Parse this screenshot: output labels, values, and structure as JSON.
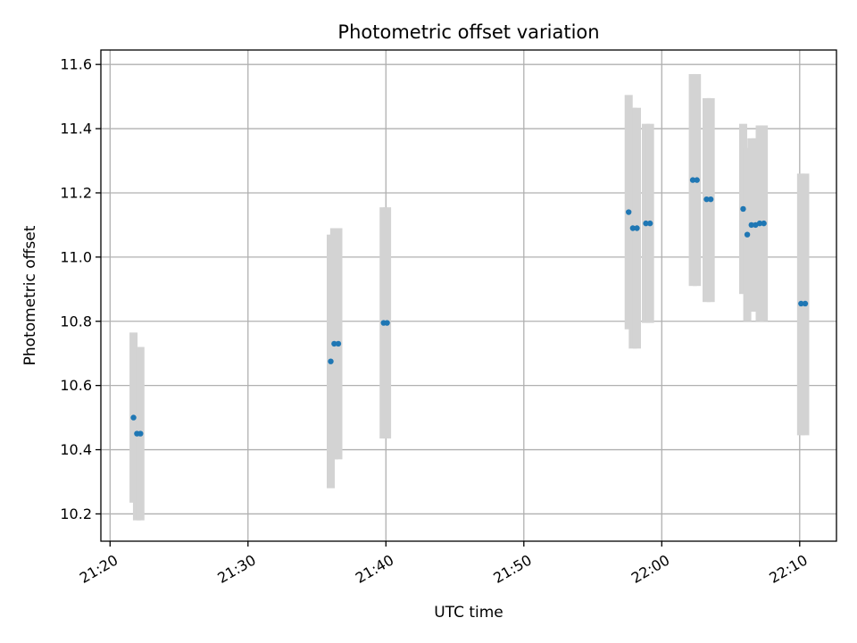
{
  "chart_data": {
    "type": "scatter",
    "title": "Photometric offset variation",
    "xlabel": "UTC time",
    "ylabel": "Photometric offset",
    "xlim": [
      "21:19:20",
      "22:12:40"
    ],
    "ylim": [
      10.115,
      11.645
    ],
    "x_ticks": [
      "21:20",
      "21:30",
      "21:40",
      "21:50",
      "22:00",
      "22:10"
    ],
    "y_ticks": [
      "10.2",
      "10.4",
      "10.6",
      "10.8",
      "11.0",
      "11.2",
      "11.4",
      "11.6"
    ],
    "grid": true,
    "legend": "none",
    "colors": {
      "point": "#1f77b4",
      "errorbar": "#d3d3d3"
    },
    "series": [
      {
        "points": [
          {
            "x": "21:21:42",
            "y": 10.5,
            "ylow": 10.235,
            "yhigh": 10.765
          },
          {
            "x": "21:21:57",
            "y": 10.45,
            "ylow": 10.18,
            "yhigh": 10.72
          },
          {
            "x": "21:22:12",
            "y": 10.45,
            "ylow": 10.18,
            "yhigh": 10.72
          },
          {
            "x": "21:36:00",
            "y": 10.675,
            "ylow": 10.28,
            "yhigh": 11.07
          },
          {
            "x": "21:36:15",
            "y": 10.73,
            "ylow": 10.37,
            "yhigh": 11.09
          },
          {
            "x": "21:36:33",
            "y": 10.73,
            "ylow": 10.37,
            "yhigh": 11.09
          },
          {
            "x": "21:39:50",
            "y": 10.795,
            "ylow": 10.435,
            "yhigh": 11.155
          },
          {
            "x": "21:40:05",
            "y": 10.795,
            "ylow": 10.435,
            "yhigh": 11.155
          },
          {
            "x": "21:57:36",
            "y": 11.14,
            "ylow": 10.775,
            "yhigh": 11.505
          },
          {
            "x": "21:57:54",
            "y": 11.09,
            "ylow": 10.715,
            "yhigh": 11.465
          },
          {
            "x": "21:58:12",
            "y": 11.09,
            "ylow": 10.715,
            "yhigh": 11.465
          },
          {
            "x": "21:58:51",
            "y": 11.105,
            "ylow": 10.795,
            "yhigh": 11.415
          },
          {
            "x": "21:59:09",
            "y": 11.105,
            "ylow": 10.795,
            "yhigh": 11.415
          },
          {
            "x": "22:02:15",
            "y": 11.24,
            "ylow": 10.91,
            "yhigh": 11.57
          },
          {
            "x": "22:02:33",
            "y": 11.24,
            "ylow": 10.91,
            "yhigh": 11.57
          },
          {
            "x": "22:03:15",
            "y": 11.18,
            "ylow": 10.86,
            "yhigh": 11.495
          },
          {
            "x": "22:03:33",
            "y": 11.18,
            "ylow": 10.86,
            "yhigh": 11.495
          },
          {
            "x": "22:05:54",
            "y": 11.15,
            "ylow": 10.885,
            "yhigh": 11.415
          },
          {
            "x": "22:06:12",
            "y": 11.07,
            "ylow": 10.8,
            "yhigh": 11.34
          },
          {
            "x": "22:06:30",
            "y": 11.1,
            "ylow": 10.83,
            "yhigh": 11.37
          },
          {
            "x": "22:06:48",
            "y": 11.1,
            "ylow": 10.83,
            "yhigh": 11.37
          },
          {
            "x": "22:07:06",
            "y": 11.105,
            "ylow": 10.8,
            "yhigh": 11.41
          },
          {
            "x": "22:07:24",
            "y": 11.105,
            "ylow": 10.8,
            "yhigh": 11.41
          },
          {
            "x": "22:10:06",
            "y": 10.855,
            "ylow": 10.445,
            "yhigh": 11.26
          },
          {
            "x": "22:10:24",
            "y": 10.855,
            "ylow": 10.445,
            "yhigh": 11.26
          }
        ]
      }
    ]
  }
}
